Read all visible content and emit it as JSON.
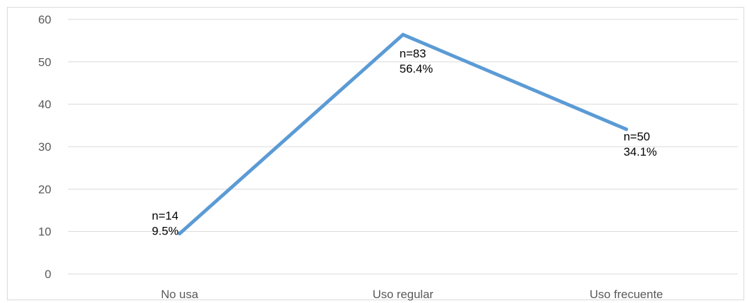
{
  "chart_data": {
    "type": "line",
    "categories": [
      "No usa",
      "Uso regular",
      "Uso frecuente"
    ],
    "series": [
      {
        "values": [
          9.5,
          56.4,
          34.1
        ],
        "color": "#5b9bd5"
      }
    ],
    "data_labels": [
      [
        "n=14",
        "9.5%"
      ],
      [
        "n=83",
        "56.4%"
      ],
      [
        "n=50",
        "34.1%"
      ]
    ],
    "ylim": [
      0,
      60
    ],
    "yticks": [
      0,
      10,
      20,
      30,
      40,
      50,
      60
    ],
    "title": "",
    "xlabel": "",
    "ylabel": "",
    "grid": "horizontal",
    "legend": "none"
  }
}
